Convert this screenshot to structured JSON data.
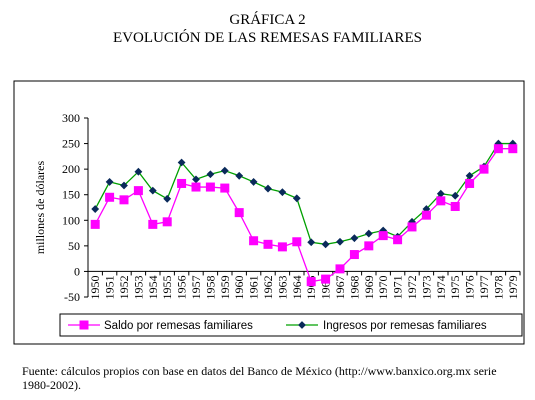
{
  "header": {
    "title_line1": "GRÁFICA 2",
    "title_line2": "EVOLUCIÓN DE LAS REMESAS FAMILIARES"
  },
  "footer": {
    "source": "Fuente: cálculos propios con base en datos del Banco de México (http://www.banxico.org.mx serie  1980-2002)."
  },
  "chart_data": {
    "type": "line",
    "ylabel": "millones de dólares",
    "xlabel": "",
    "ylim": [
      -50,
      300
    ],
    "yticks": [
      -50,
      0,
      50,
      100,
      150,
      200,
      250,
      300
    ],
    "grid": false,
    "legend_position": "bottom",
    "categories": [
      "1950",
      "1951",
      "1952",
      "1953",
      "1954",
      "1955",
      "1956",
      "1957",
      "1958",
      "1959",
      "1960",
      "1961",
      "1962",
      "1963",
      "1964",
      "1965",
      "1966",
      "1967",
      "1968",
      "1969",
      "1970",
      "1971",
      "1972",
      "1973",
      "1974",
      "1975",
      "1976",
      "1977",
      "1978",
      "1979"
    ],
    "series": [
      {
        "name": "Saldo por remesas familiares",
        "color": "#ff00ff",
        "marker": "square",
        "values": [
          92,
          145,
          140,
          158,
          92,
          97,
          172,
          165,
          165,
          163,
          115,
          60,
          53,
          48,
          58,
          -20,
          -15,
          5,
          33,
          50,
          70,
          62,
          87,
          110,
          138,
          127,
          172,
          200,
          240,
          240
        ]
      },
      {
        "name": "Ingresos por remesas familiares",
        "color": "#00a000",
        "marker": "diamond",
        "marker_color": "#0a2a5a",
        "values": [
          122,
          175,
          168,
          195,
          158,
          142,
          213,
          180,
          190,
          197,
          187,
          175,
          162,
          155,
          143,
          57,
          53,
          58,
          65,
          74,
          80,
          68,
          97,
          122,
          152,
          148,
          187,
          205,
          250,
          250
        ]
      }
    ]
  }
}
